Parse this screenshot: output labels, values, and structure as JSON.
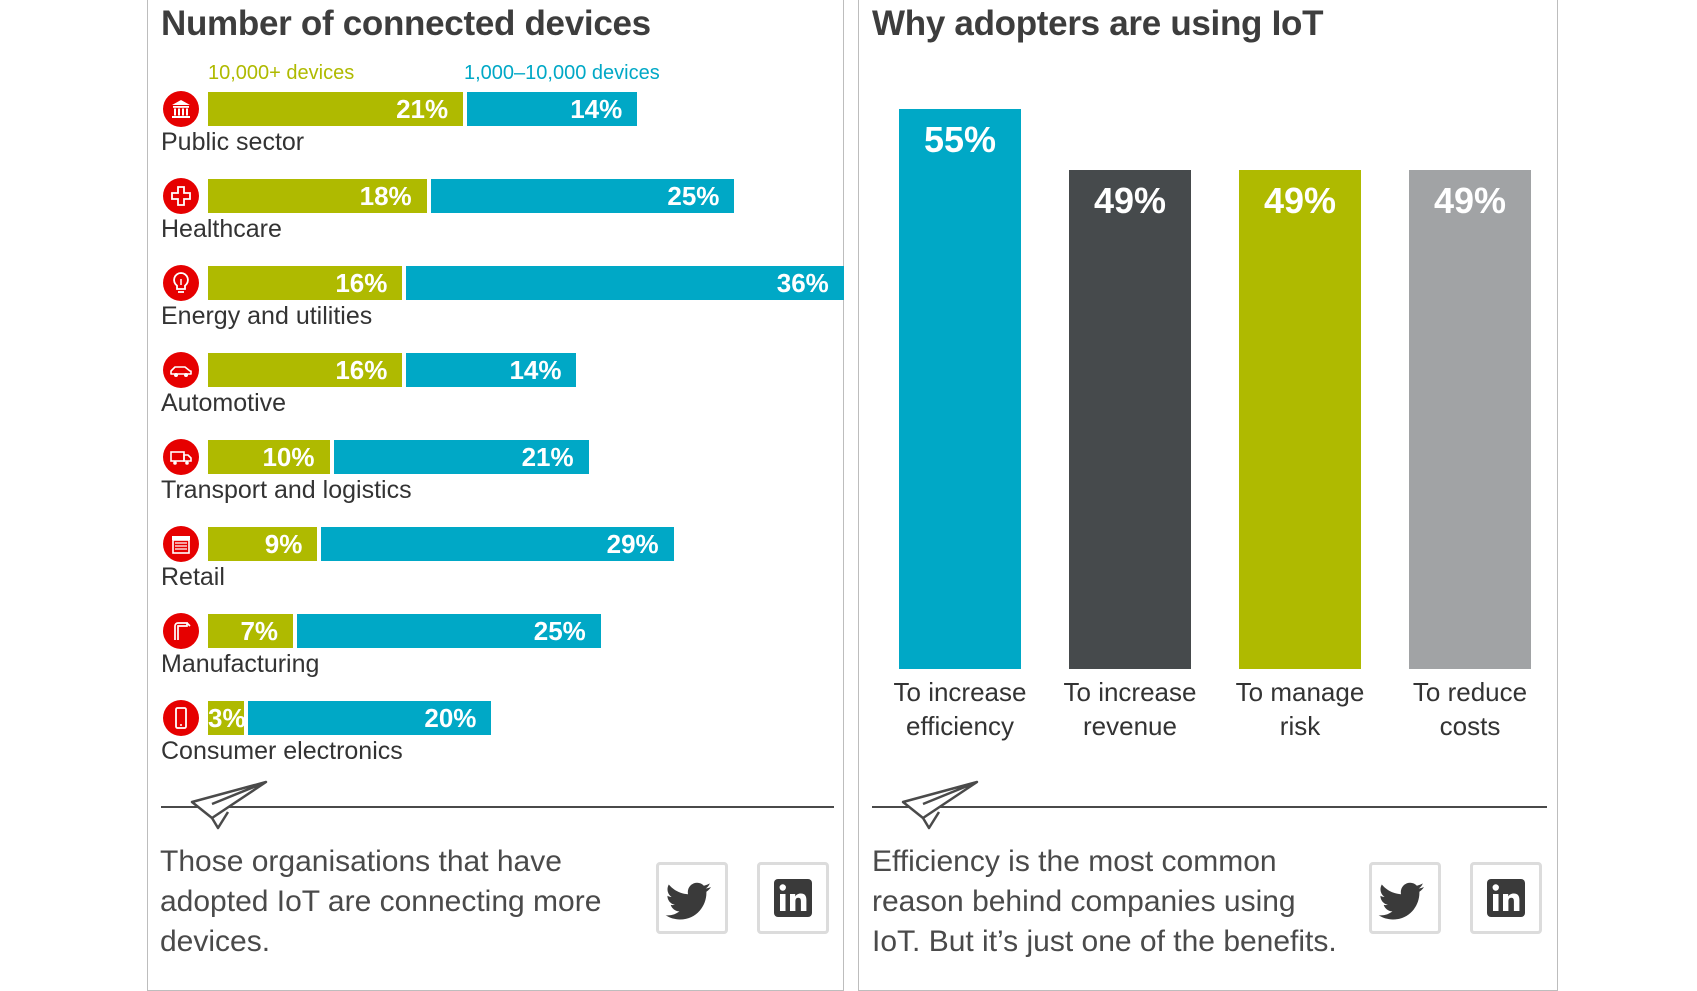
{
  "left_panel": {
    "title": "Number of connected devices",
    "legend": {
      "series1": "10,000+ devices",
      "series2": "1,000–10,000 devices"
    },
    "caption": "Those organisations that have adopted IoT are connecting more devices.",
    "social": [
      "twitter-icon",
      "linkedin-icon"
    ]
  },
  "right_panel": {
    "title": "Why adopters are using IoT",
    "caption": "Efficiency is the most common reason behind companies using IoT. But it’s just one of the benefits.",
    "social": [
      "twitter-icon",
      "linkedin-icon"
    ]
  },
  "colors": {
    "lime": "#afba00",
    "teal": "#00a8c6",
    "dark": "#464a4c",
    "grey": "#a1a3a5",
    "red": "#e60000"
  },
  "chart_data": [
    {
      "type": "bar",
      "orientation": "horizontal",
      "stacked": true,
      "title": "Number of connected devices",
      "categories": [
        "Public sector",
        "Healthcare",
        "Energy and utilities",
        "Automotive",
        "Transport and logistics",
        "Retail",
        "Manufacturing",
        "Consumer electronics"
      ],
      "category_icons": [
        "government-building-icon",
        "medical-cross-icon",
        "lightbulb-icon",
        "car-icon",
        "truck-icon",
        "shop-icon",
        "fuel-pump-icon",
        "smartphone-icon"
      ],
      "series": [
        {
          "name": "10,000+ devices",
          "values": [
            21,
            18,
            16,
            16,
            10,
            9,
            7,
            3
          ],
          "labels": [
            "21%",
            "18%",
            "16%",
            "16%",
            "10%",
            "9%",
            "7%",
            "3%"
          ]
        },
        {
          "name": "1,000–10,000 devices",
          "values": [
            14,
            25,
            36,
            14,
            21,
            29,
            25,
            20
          ],
          "labels": [
            "14%",
            "25%",
            "36%",
            "14%",
            "21%",
            "29%",
            "25%",
            "20%"
          ]
        }
      ],
      "legend": "top"
    },
    {
      "type": "bar",
      "orientation": "vertical",
      "title": "Why adopters are using IoT",
      "categories": [
        "To increase efficiency",
        "To increase revenue",
        "To manage risk",
        "To reduce costs"
      ],
      "category_lines": [
        [
          "To increase",
          "efficiency"
        ],
        [
          "To increase",
          "revenue"
        ],
        [
          "To manage",
          "risk"
        ],
        [
          "To reduce",
          "costs"
        ]
      ],
      "values": [
        55,
        49,
        49,
        49
      ],
      "labels": [
        "55%",
        "49%",
        "49%",
        "49%"
      ],
      "bar_colors": [
        "#00a8c6",
        "#464a4c",
        "#afba00",
        "#a1a3a5"
      ]
    }
  ]
}
